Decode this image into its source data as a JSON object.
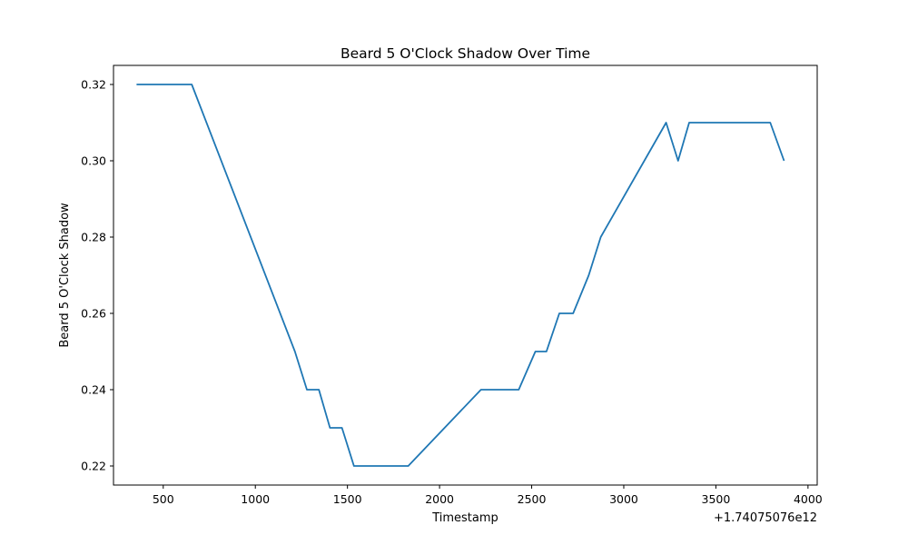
{
  "chart_data": {
    "type": "line",
    "title": "Beard 5 O'Clock Shadow Over Time",
    "xlabel": "Timestamp",
    "ylabel": "Beard 5 O'Clock Shadow",
    "x_offset_label": "+1.74075076e12",
    "xlim": [
      230,
      4050
    ],
    "ylim": [
      0.215,
      0.325
    ],
    "x_ticks": [
      500,
      1000,
      1500,
      2000,
      2500,
      3000,
      3500,
      4000
    ],
    "y_ticks": [
      0.22,
      0.24,
      0.26,
      0.28,
      0.3,
      0.32
    ],
    "x_tick_labels": [
      "500",
      "1000",
      "1500",
      "2000",
      "2500",
      "3000",
      "3500",
      "4000"
    ],
    "y_tick_labels": [
      "0.22",
      "0.24",
      "0.26",
      "0.28",
      "0.30",
      "0.32"
    ],
    "grid": false,
    "line_color": "#1f77b4",
    "series": [
      {
        "x": [
          355,
          655,
          1215,
          1280,
          1345,
          1405,
          1470,
          1535,
          1830,
          2225,
          2430,
          2520,
          2580,
          2650,
          2725,
          2810,
          2875,
          3230,
          3295,
          3355,
          3795,
          3870
        ],
        "y": [
          0.32,
          0.32,
          0.25,
          0.24,
          0.24,
          0.23,
          0.23,
          0.22,
          0.22,
          0.24,
          0.24,
          0.25,
          0.25,
          0.26,
          0.26,
          0.27,
          0.28,
          0.31,
          0.3,
          0.31,
          0.31,
          0.3
        ]
      }
    ]
  }
}
